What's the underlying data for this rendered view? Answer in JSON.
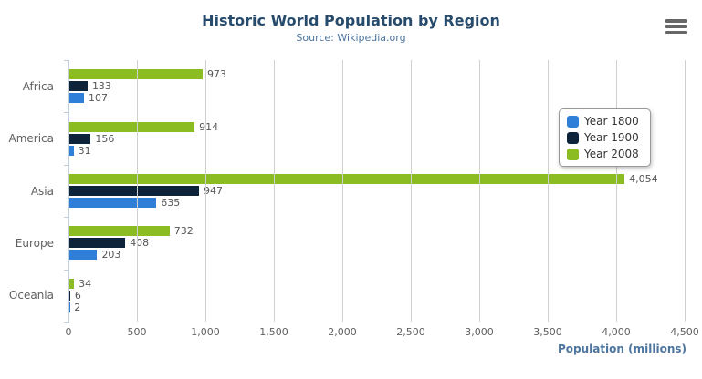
{
  "chart_data": {
    "type": "bar",
    "orientation": "horizontal",
    "title": "Historic World Population by Region",
    "subtitle": "Source: Wikipedia.org",
    "categories": [
      "Africa",
      "America",
      "Asia",
      "Europe",
      "Oceania"
    ],
    "series": [
      {
        "name": "Year 1800",
        "color": "#2f7ed8",
        "values": [
          107,
          31,
          635,
          203,
          2
        ]
      },
      {
        "name": "Year 1900",
        "color": "#0d233a",
        "values": [
          133,
          156,
          947,
          408,
          6
        ]
      },
      {
        "name": "Year 2008",
        "color": "#8bbc21",
        "values": [
          973,
          914,
          4054,
          732,
          34
        ]
      }
    ],
    "bar_display_order": "last-series-on-top",
    "data_labels": [
      [
        "107",
        "31",
        "635",
        "203",
        "2"
      ],
      [
        "133",
        "156",
        "947",
        "408",
        "6"
      ],
      [
        "973",
        "914",
        "4,054",
        "732",
        "34"
      ]
    ],
    "xlabel": "Population (millions)",
    "ylabel": "",
    "xlim": [
      0,
      4500
    ],
    "x_ticks": [
      "0",
      "500",
      "1,000",
      "1,500",
      "2,000",
      "2,500",
      "3,000",
      "3,500",
      "4,000",
      "4,500"
    ],
    "grid": true,
    "legend_position": "right",
    "legend_entries": [
      "Year 1800",
      "Year 1900",
      "Year 2008"
    ]
  },
  "colors": {
    "title": "#274b6d",
    "subtitle": "#4d759e",
    "axis_title": "#4d759e",
    "tick_labels": "#606060",
    "data_labels": "#555555",
    "gridline": "#d0d0d0",
    "category_axis_line": "#c0d0e0",
    "menu_icon": "#666666"
  },
  "toolbar": {
    "menu_icon": "hamburger-menu-icon"
  }
}
